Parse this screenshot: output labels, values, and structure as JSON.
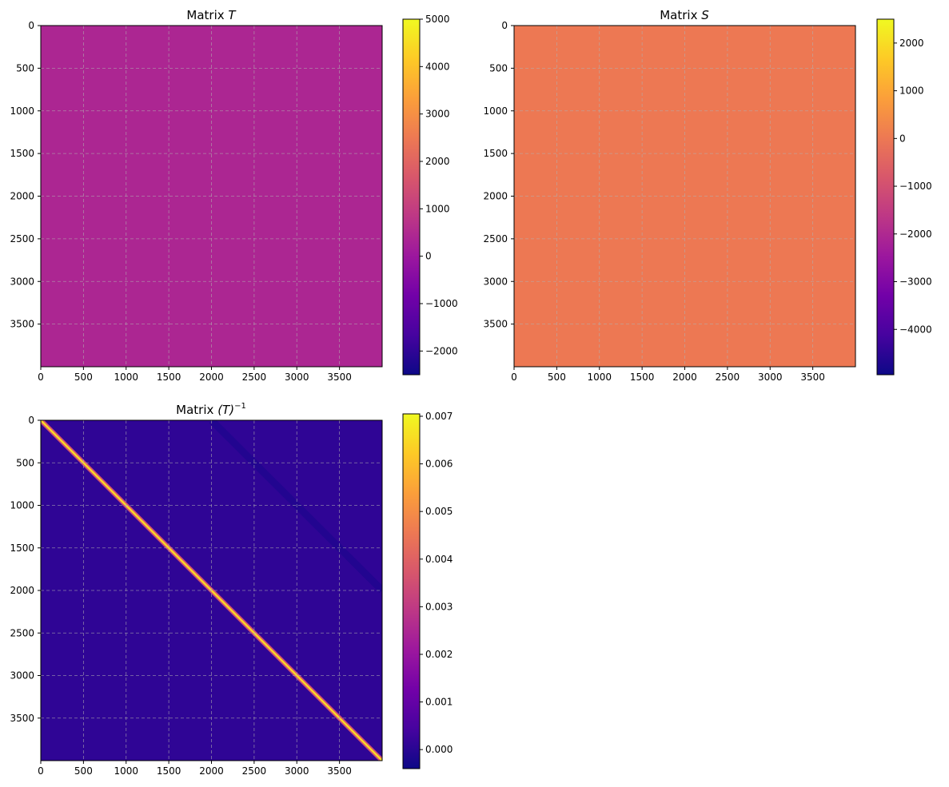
{
  "chart_data": [
    {
      "type": "heatmap",
      "title": "Matrix T",
      "title_text": "Matrix",
      "title_symbol": "T",
      "title_sup": "",
      "matrix_size": 4000,
      "x_ticks": [
        0,
        500,
        1000,
        1500,
        2000,
        2500,
        3000,
        3500
      ],
      "y_ticks": [
        0,
        500,
        1000,
        1500,
        2000,
        2500,
        3000,
        3500
      ],
      "x_tick_labels": [
        "0",
        "500",
        "1000",
        "1500",
        "2000",
        "2500",
        "3000",
        "3500"
      ],
      "y_tick_labels": [
        "0",
        "500",
        "1000",
        "1500",
        "2000",
        "2500",
        "3000",
        "3500"
      ],
      "grid": true,
      "colormap": "plasma",
      "colorbar": {
        "vmin": -2500,
        "vmax": 5000,
        "ticks": [
          -2000,
          -1000,
          0,
          1000,
          2000,
          3000,
          4000,
          5000
        ],
        "tick_labels": [
          "−2000",
          "−1000",
          "0",
          "1000",
          "2000",
          "3000",
          "4000",
          "5000"
        ]
      },
      "background_value": 400,
      "diagonal": null
    },
    {
      "type": "heatmap",
      "title": "Matrix S",
      "title_text": "Matrix",
      "title_symbol": "S",
      "title_sup": "",
      "matrix_size": 4000,
      "x_ticks": [
        0,
        500,
        1000,
        1500,
        2000,
        2500,
        3000,
        3500
      ],
      "y_ticks": [
        0,
        500,
        1000,
        1500,
        2000,
        2500,
        3000,
        3500
      ],
      "x_tick_labels": [
        "0",
        "500",
        "1000",
        "1500",
        "2000",
        "2500",
        "3000",
        "3500"
      ],
      "y_tick_labels": [
        "0",
        "500",
        "1000",
        "1500",
        "2000",
        "2500",
        "3000",
        "3500"
      ],
      "grid": true,
      "colormap": "plasma",
      "colorbar": {
        "vmin": -4950,
        "vmax": 2500,
        "ticks": [
          -4000,
          -3000,
          -2000,
          -1000,
          0,
          1000,
          2000
        ],
        "tick_labels": [
          "−4000",
          "−3000",
          "−2000",
          "−1000",
          "0",
          "1000",
          "2000"
        ]
      },
      "background_value": 0,
      "diagonal": null
    },
    {
      "type": "heatmap",
      "title": "Matrix (T)^-1",
      "title_text": "Matrix",
      "title_symbol": "(T)",
      "title_sup": "−1",
      "matrix_size": 4000,
      "x_ticks": [
        0,
        500,
        1000,
        1500,
        2000,
        2500,
        3000,
        3500
      ],
      "y_ticks": [
        0,
        500,
        1000,
        1500,
        2000,
        2500,
        3000,
        3500
      ],
      "x_tick_labels": [
        "0",
        "500",
        "1000",
        "1500",
        "2000",
        "2500",
        "3000",
        "3500"
      ],
      "y_tick_labels": [
        "0",
        "500",
        "1000",
        "1500",
        "2000",
        "2500",
        "3000",
        "3500"
      ],
      "grid": true,
      "colormap": "plasma",
      "colorbar": {
        "vmin": -0.0004,
        "vmax": 0.00705,
        "ticks": [
          0.0,
          0.001,
          0.002,
          0.003,
          0.004,
          0.005,
          0.006,
          0.007
        ],
        "tick_labels": [
          "0.000",
          "0.001",
          "0.002",
          "0.003",
          "0.004",
          "0.005",
          "0.006",
          "0.007"
        ]
      },
      "background_value": 0.0001,
      "diagonal": {
        "value": 0.0065,
        "from": 0,
        "to": 4000
      },
      "offdiagonal": {
        "value": -0.0003,
        "row_start": 0,
        "col_start": 2000,
        "row_end": 2000,
        "col_end": 4000
      }
    }
  ],
  "colormap_stops": [
    "#0d0887",
    "#46039f",
    "#7201a8",
    "#9c179e",
    "#bd3786",
    "#d8576b",
    "#ed7953",
    "#fb9f3a",
    "#fdca26",
    "#f0f921"
  ]
}
